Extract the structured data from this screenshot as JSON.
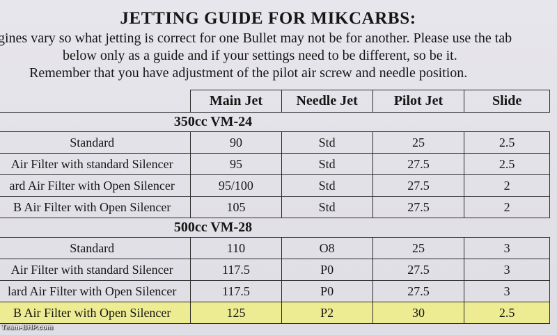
{
  "title": "JETTING GUIDE FOR MIKCARBS:",
  "intro": [
    "gines vary so what jetting is correct for one Bullet may not be for another. Please use the tab",
    "below only as a guide and if your settings need to be different, so be it.",
    "Remember that you have adjustment of the pilot air screw and needle position."
  ],
  "headers": [
    "Main Jet",
    "Needle Jet",
    "Pilot Jet",
    "Slide"
  ],
  "sections": [
    {
      "name": "350cc VM-24",
      "rows": [
        {
          "setup": "Standard",
          "main_jet": "90",
          "needle_jet": "Std",
          "pilot_jet": "25",
          "slide": "2.5"
        },
        {
          "setup": "Air Filter with standard Silencer",
          "main_jet": "95",
          "needle_jet": "Std",
          "pilot_jet": "27.5",
          "slide": "2.5"
        },
        {
          "setup": "ard Air Filter with Open Silencer",
          "main_jet": "95/100",
          "needle_jet": "Std",
          "pilot_jet": "27.5",
          "slide": "2"
        },
        {
          "setup": "B Air Filter with Open Silencer",
          "main_jet": "105",
          "needle_jet": "Std",
          "pilot_jet": "27.5",
          "slide": "2"
        }
      ]
    },
    {
      "name": "500cc VM-28",
      "rows": [
        {
          "setup": "Standard",
          "main_jet": "110",
          "needle_jet": "O8",
          "pilot_jet": "25",
          "slide": "3"
        },
        {
          "setup": "Air Filter with standard Silencer",
          "main_jet": "117.5",
          "needle_jet": "P0",
          "pilot_jet": "27.5",
          "slide": "3"
        },
        {
          "setup": "lard Air Filter with Open Silencer",
          "main_jet": "117.5",
          "needle_jet": "P0",
          "pilot_jet": "27.5",
          "slide": "3"
        },
        {
          "setup": "B Air Filter with Open Silencer",
          "main_jet": "125",
          "needle_jet": "P2",
          "pilot_jet": "30",
          "slide": "2.5"
        }
      ]
    }
  ],
  "highlight_color": "#f8f850",
  "watermark": "Team-BHP.com"
}
